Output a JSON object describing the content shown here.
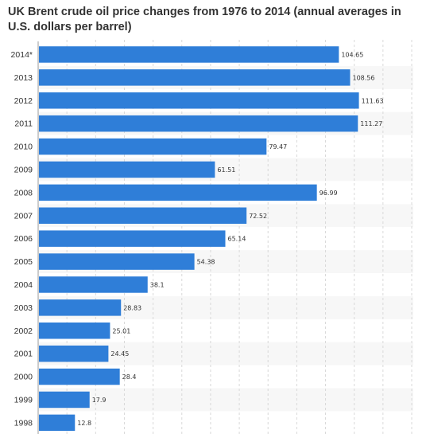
{
  "chart_data": {
    "type": "bar",
    "orientation": "horizontal",
    "title": "UK Brent crude oil price changes from 1976 to 2014 (annual averages in U.S. dollars per barrel)",
    "xlabel": "",
    "ylabel": "",
    "categories": [
      "2014*",
      "2013",
      "2012",
      "2011",
      "2010",
      "2009",
      "2008",
      "2007",
      "2006",
      "2005",
      "2004",
      "2003",
      "2002",
      "2001",
      "2000",
      "1999",
      "1998"
    ],
    "values": [
      104.65,
      108.56,
      111.63,
      111.27,
      79.47,
      61.51,
      96.99,
      72.52,
      65.14,
      54.38,
      38.1,
      28.83,
      25.01,
      24.45,
      28.4,
      17.9,
      12.8
    ],
    "value_labels": [
      "104.65",
      "108.56",
      "111.63",
      "111.27",
      "79.47",
      "61.51",
      "96.99",
      "72.52",
      "65.14",
      "54.38",
      "38.1",
      "28.83",
      "25.01",
      "24.45",
      "28.4",
      "17.9",
      "12.8"
    ],
    "xlim": [
      0,
      130
    ],
    "grid": true,
    "bar_color": "#2f7ed8",
    "stripe_color": "#f7f7f7",
    "grid_color": "#d9d9d9"
  }
}
